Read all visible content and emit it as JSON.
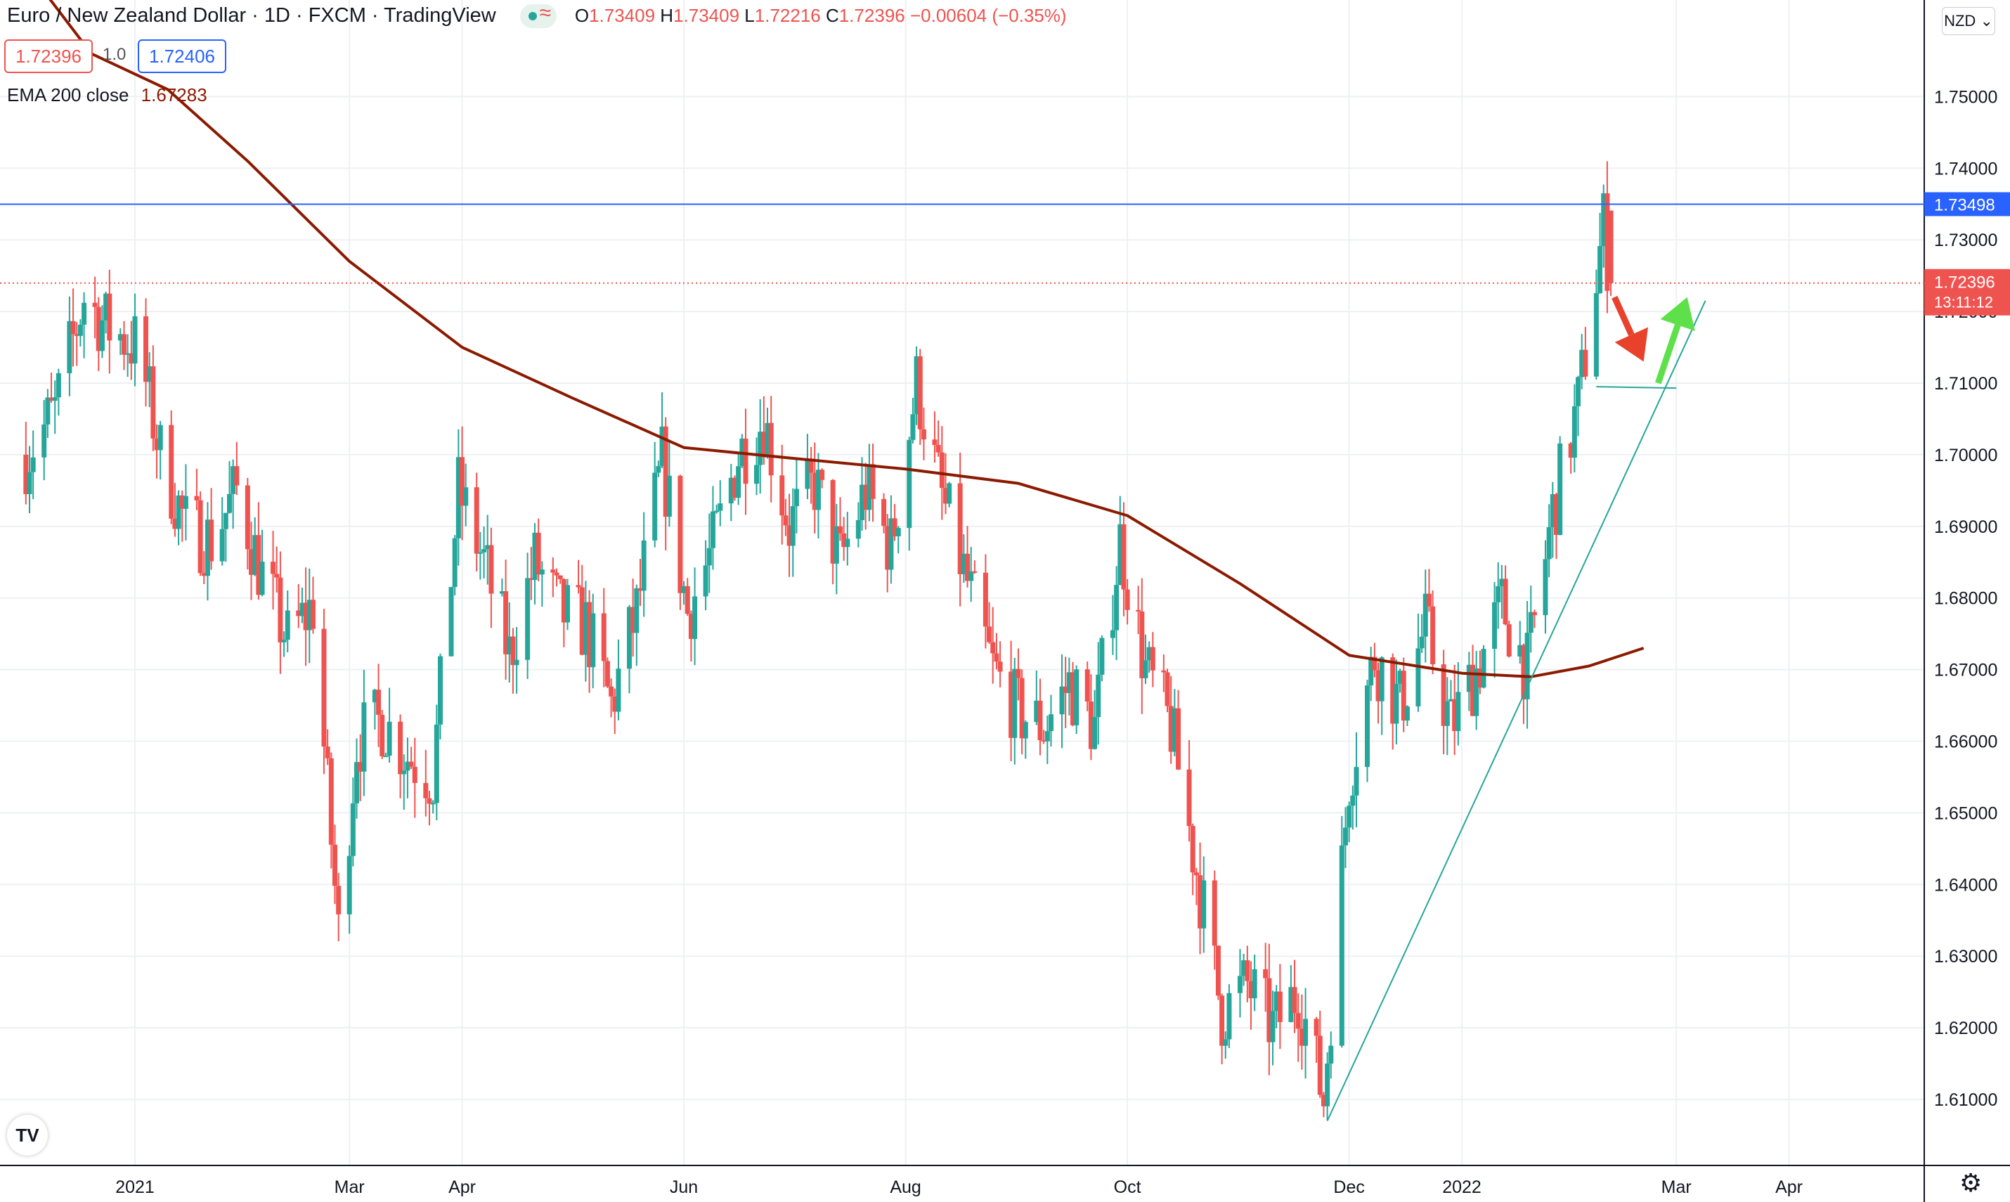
{
  "header": {
    "title": "Euro / New Zealand Dollar · 1D · FXCM · TradingView",
    "ohlc": {
      "o": "1.73409",
      "h": "1.73409",
      "l": "1.72216",
      "c": "1.72396",
      "change": "−0.00604 (−0.35%)"
    },
    "sell_price": "1.72396",
    "spread": "1.0",
    "buy_price": "1.72406",
    "indicator_label": "EMA 200 close",
    "indicator_value": "1.67283",
    "currency": "NZD",
    "logo": "TV",
    "settings_icon": "gear-icon"
  },
  "chart_data": {
    "type": "candlestick",
    "title": "Euro / New Zealand Dollar · 1D · FXCM · TradingView",
    "xlabel": "",
    "ylabel": "",
    "ylim": [
      1.6025,
      1.7615
    ],
    "y_ticks": [
      "1.61000",
      "1.62000",
      "1.63000",
      "1.64000",
      "1.65000",
      "1.66000",
      "1.67000",
      "1.68000",
      "1.69000",
      "1.70000",
      "1.71000",
      "1.72000",
      "1.73000",
      "1.74000",
      "1.75000"
    ],
    "x_ticks": [
      "2021",
      "Mar",
      "Apr",
      "Jun",
      "Aug",
      "Oct",
      "Dec",
      "2022",
      "Mar",
      "Apr"
    ],
    "x_tick_dates": [
      "2021-01-01",
      "2021-03-01",
      "2021-04-01",
      "2021-06-01",
      "2021-08-01",
      "2021-10-01",
      "2021-12-01",
      "2022-01-01",
      "2022-03-01",
      "2022-04-01"
    ],
    "x_range": [
      "2020-12-02",
      "2022-05-01"
    ],
    "closes": [
      [
        "2020-12-02",
        1.7
      ],
      [
        "2020-12-10",
        1.706
      ],
      [
        "2020-12-18",
        1.722
      ],
      [
        "2020-12-24",
        1.718
      ],
      [
        "2021-01-02",
        1.715
      ],
      [
        "2021-01-08",
        1.7
      ],
      [
        "2021-01-15",
        1.69
      ],
      [
        "2021-01-22",
        1.688
      ],
      [
        "2021-01-29",
        1.695
      ],
      [
        "2021-02-05",
        1.683
      ],
      [
        "2021-02-12",
        1.674
      ],
      [
        "2021-02-19",
        1.679
      ],
      [
        "2021-02-26",
        1.633
      ],
      [
        "2021-03-03",
        1.66
      ],
      [
        "2021-03-10",
        1.663
      ],
      [
        "2021-03-17",
        1.658
      ],
      [
        "2021-03-24",
        1.655
      ],
      [
        "2021-03-31",
        1.695
      ],
      [
        "2021-04-07",
        1.685
      ],
      [
        "2021-04-14",
        1.672
      ],
      [
        "2021-04-21",
        1.685
      ],
      [
        "2021-04-28",
        1.678
      ],
      [
        "2021-05-05",
        1.676
      ],
      [
        "2021-05-12",
        1.665
      ],
      [
        "2021-05-19",
        1.678
      ],
      [
        "2021-05-26",
        1.699
      ],
      [
        "2021-06-02",
        1.678
      ],
      [
        "2021-06-09",
        1.687
      ],
      [
        "2021-06-16",
        1.7
      ],
      [
        "2021-06-23",
        1.705
      ],
      [
        "2021-06-30",
        1.69
      ],
      [
        "2021-07-07",
        1.696
      ],
      [
        "2021-07-14",
        1.685
      ],
      [
        "2021-07-21",
        1.695
      ],
      [
        "2021-07-28",
        1.687
      ],
      [
        "2021-08-04",
        1.71
      ],
      [
        "2021-08-11",
        1.694
      ],
      [
        "2021-08-18",
        1.682
      ],
      [
        "2021-08-25",
        1.67
      ],
      [
        "2021-09-01",
        1.664
      ],
      [
        "2021-09-08",
        1.662
      ],
      [
        "2021-09-15",
        1.668
      ],
      [
        "2021-09-22",
        1.662
      ],
      [
        "2021-09-29",
        1.688
      ],
      [
        "2021-10-06",
        1.67
      ],
      [
        "2021-10-13",
        1.662
      ],
      [
        "2021-10-20",
        1.642
      ],
      [
        "2021-10-27",
        1.622
      ],
      [
        "2021-11-03",
        1.626
      ],
      [
        "2021-11-10",
        1.62
      ],
      [
        "2021-11-17",
        1.625
      ],
      [
        "2021-11-24",
        1.61
      ],
      [
        "2021-12-01",
        1.655
      ],
      [
        "2021-12-08",
        1.672
      ],
      [
        "2021-12-15",
        1.665
      ],
      [
        "2021-12-22",
        1.676
      ],
      [
        "2021-12-29",
        1.662
      ],
      [
        "2022-01-05",
        1.67
      ],
      [
        "2022-01-12",
        1.679
      ],
      [
        "2022-01-19",
        1.67
      ],
      [
        "2022-01-26",
        1.692
      ],
      [
        "2022-02-02",
        1.707
      ],
      [
        "2022-02-09",
        1.732
      ],
      [
        "2022-02-11",
        1.724
      ]
    ],
    "ema200": [
      [
        "2020-12-02",
        1.768
      ],
      [
        "2020-12-20",
        1.756
      ],
      [
        "2021-01-10",
        1.751
      ],
      [
        "2021-02-01",
        1.741
      ],
      [
        "2021-03-01",
        1.727
      ],
      [
        "2021-04-01",
        1.715
      ],
      [
        "2021-05-01",
        1.708
      ],
      [
        "2021-06-01",
        1.701
      ],
      [
        "2021-07-01",
        1.6995
      ],
      [
        "2021-08-01",
        1.698
      ],
      [
        "2021-09-01",
        1.696
      ],
      [
        "2021-10-01",
        1.6915
      ],
      [
        "2021-11-01",
        1.682
      ],
      [
        "2021-12-01",
        1.672
      ],
      [
        "2022-01-01",
        1.6695
      ],
      [
        "2022-01-20",
        1.669
      ],
      [
        "2022-02-05",
        1.6705
      ],
      [
        "2022-02-20",
        1.673
      ]
    ],
    "horizontal_level": {
      "value": 1.73498,
      "label": "1.73498",
      "color": "#2962ff"
    },
    "current_price": {
      "value": 1.72396,
      "label": "1.72396",
      "countdown": "13:11:12",
      "color": "#ef5350"
    },
    "support_line": {
      "from": [
        "2022-02-07",
        1.7095
      ],
      "to": [
        "2022-03-01",
        1.7093
      ],
      "color": "#26a69a"
    },
    "trend_line": {
      "from": [
        "2021-11-25",
        1.607
      ],
      "to": [
        "2022-03-09",
        1.7215
      ],
      "color": "#26a69a"
    },
    "annotations": [
      {
        "type": "arrow-down",
        "color": "#e8412c",
        "from": [
          "2022-02-12",
          1.722
        ],
        "to": [
          "2022-02-20",
          1.713
        ]
      },
      {
        "type": "arrow-up",
        "color": "#5ee04a",
        "from": [
          "2022-02-24",
          1.71
        ],
        "to": [
          "2022-03-04",
          1.722
        ]
      }
    ],
    "colors": {
      "up": "#26a69a",
      "down": "#ef5350",
      "ema": "#8b1a00",
      "grid": "#eef0f3"
    }
  }
}
